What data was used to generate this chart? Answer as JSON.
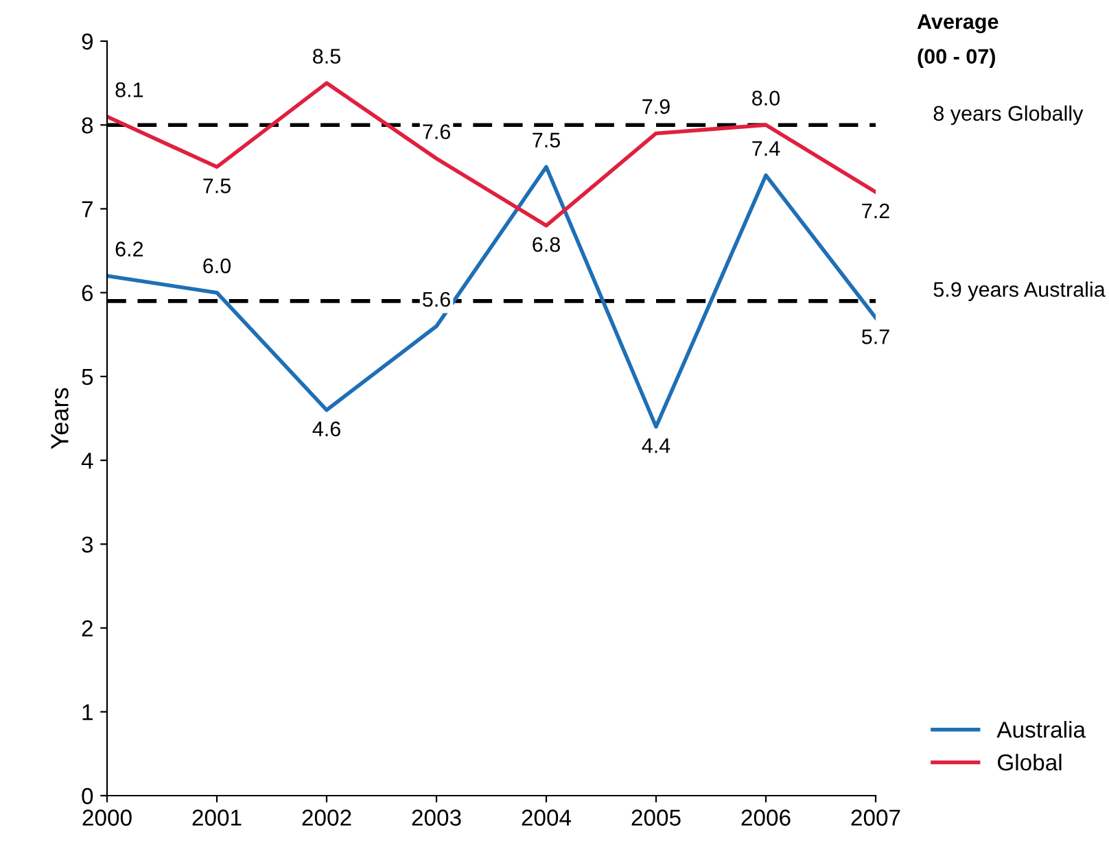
{
  "chart_data": {
    "type": "line",
    "x": [
      2000,
      2001,
      2002,
      2003,
      2004,
      2005,
      2006,
      2007
    ],
    "xlim": [
      2000,
      2007
    ],
    "xticks": [
      2000,
      2001,
      2002,
      2003,
      2004,
      2005,
      2006,
      2007
    ],
    "ylim": [
      0,
      9
    ],
    "yticks": [
      0,
      1,
      2,
      3,
      4,
      5,
      6,
      7,
      8,
      9
    ],
    "ylabel": "Years",
    "series": [
      {
        "name": "Australia",
        "color": "#1f6fb5",
        "values": [
          6.2,
          6.0,
          4.6,
          5.6,
          7.5,
          4.4,
          7.4,
          5.7
        ],
        "value_labels": [
          "6.2",
          "6.0",
          "4.6",
          "5.6",
          "7.5",
          "4.4",
          "7.4",
          "5.7"
        ]
      },
      {
        "name": "Global",
        "color": "#e0203f",
        "values": [
          8.1,
          7.5,
          8.5,
          7.6,
          6.8,
          7.9,
          8.0,
          7.2
        ],
        "value_labels": [
          "8.1",
          "7.5",
          "8.5",
          "7.6",
          "6.8",
          "7.9",
          "8.0",
          "7.2"
        ]
      }
    ],
    "ref_lines": [
      {
        "axis": "y",
        "value": 8,
        "label": "8 years Globally",
        "color": "#000000",
        "line_style": "dashed"
      },
      {
        "axis": "y",
        "value": 5.9,
        "label": "5.9 years Australia",
        "color": "#000000",
        "line_style": "dashed"
      }
    ],
    "annotations": [
      "Average\n(00 - 07)"
    ],
    "grid": false,
    "legend": "bottom right",
    "marker": "none",
    "line_style": "solid"
  }
}
